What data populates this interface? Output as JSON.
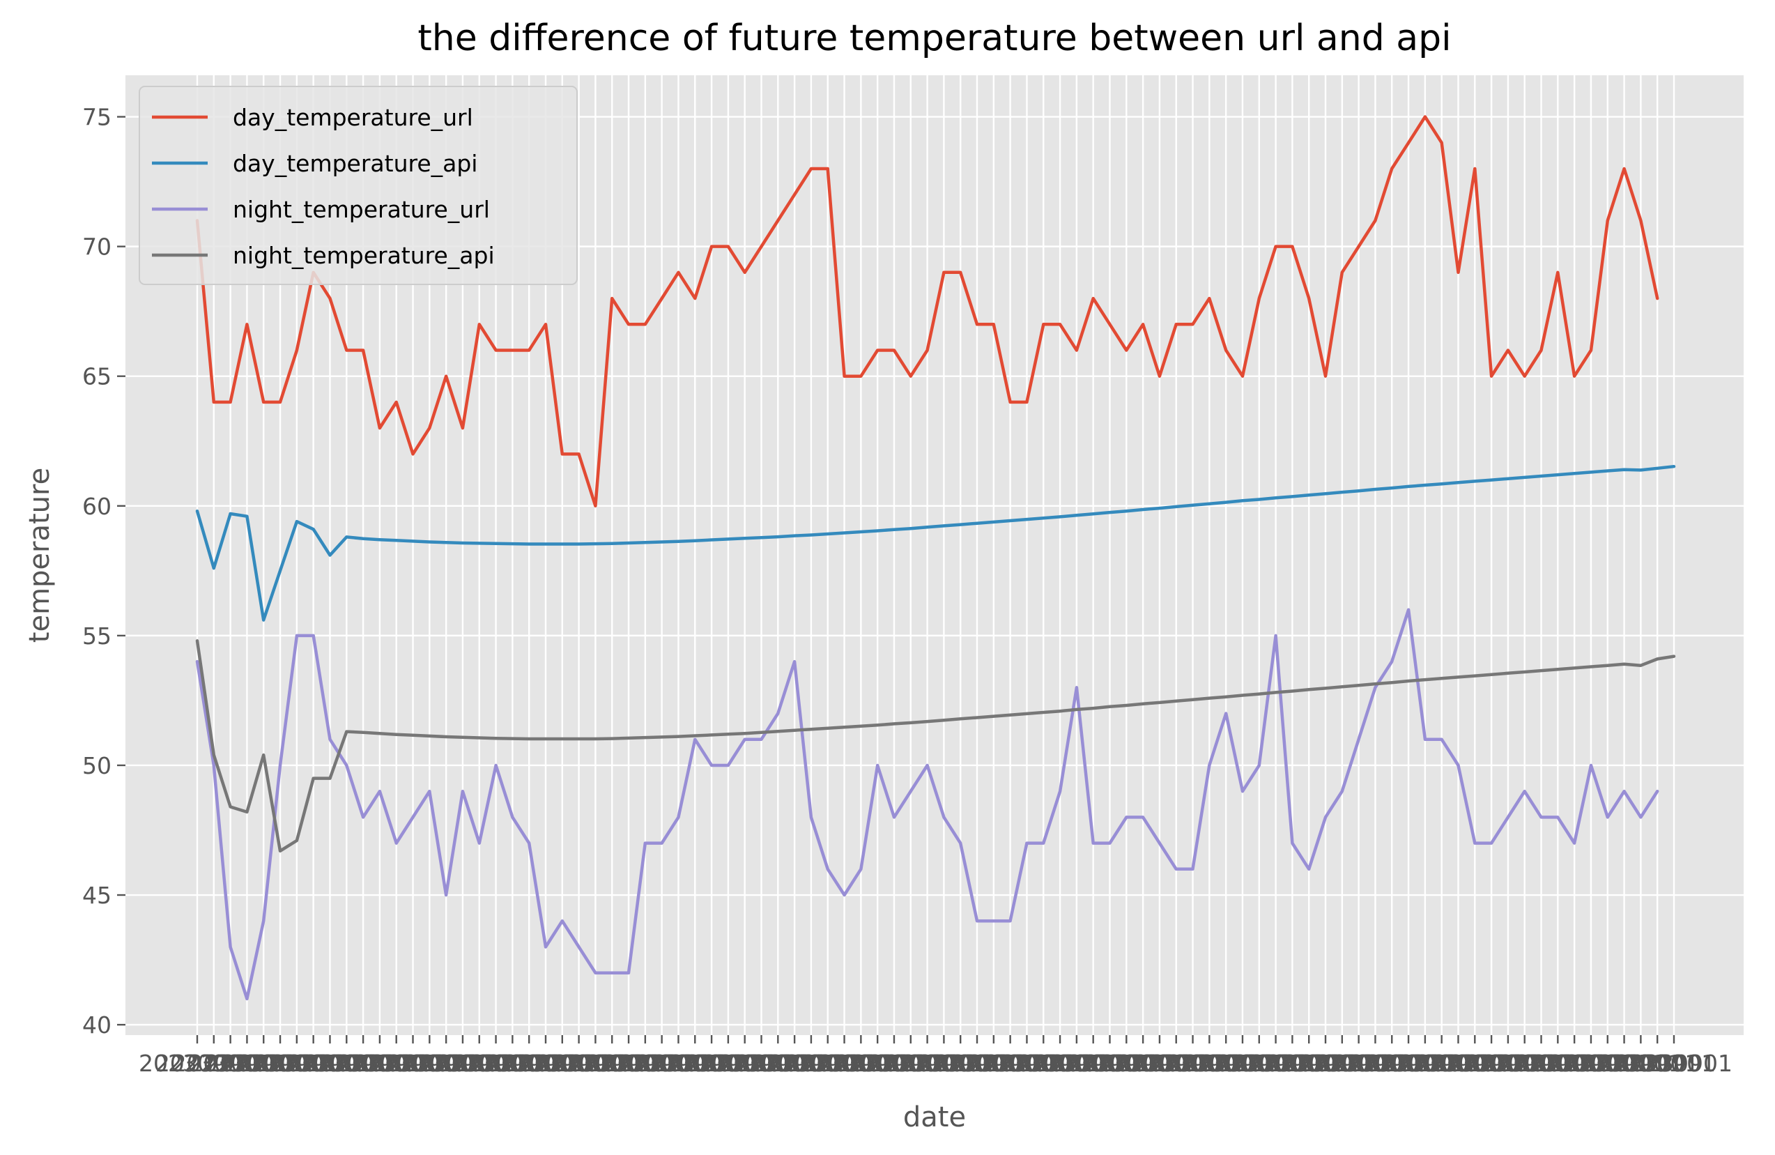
{
  "chart_data": {
    "type": "line",
    "title": "the difference of future temperature between url and api",
    "xlabel": "date",
    "ylabel": "temperature",
    "ylim": [
      39.6,
      76.6
    ],
    "yticks": [
      40,
      45,
      50,
      55,
      60,
      65,
      70,
      75
    ],
    "x_tick_count": 90,
    "x_tick_label_text": "20230901",
    "grid": true,
    "legend_position": "top-left",
    "series": [
      {
        "name": "day_temperature_url",
        "color": "#E24A33",
        "values": [
          71,
          64,
          64,
          67,
          64,
          64,
          66,
          69,
          68,
          66,
          66,
          63,
          64,
          62,
          63,
          65,
          63,
          67,
          66,
          66,
          66,
          67,
          62,
          62,
          60,
          68,
          67,
          67,
          68,
          69,
          68,
          70,
          70,
          69,
          70,
          71,
          72,
          73,
          73,
          65,
          65,
          66,
          66,
          65,
          66,
          69,
          69,
          67,
          67,
          64,
          64,
          67,
          67,
          66,
          68,
          67,
          66,
          67,
          65,
          67,
          67,
          68,
          66,
          65,
          68,
          70,
          70,
          68,
          65,
          69,
          70,
          71,
          73,
          74,
          75,
          74,
          69,
          73,
          65,
          66,
          65,
          66,
          69,
          65,
          66,
          71,
          73,
          71,
          68
        ]
      },
      {
        "name": "day_temperature_api",
        "color": "#348ABD",
        "values": [
          59.8,
          57.6,
          59.7,
          59.6,
          55.6,
          57.5,
          59.4,
          59.1,
          58.1,
          58.8,
          58.74,
          58.7,
          58.67,
          58.64,
          58.61,
          58.59,
          58.57,
          58.56,
          58.55,
          58.54,
          58.53,
          58.53,
          58.53,
          58.53,
          58.54,
          58.55,
          58.57,
          58.59,
          58.61,
          58.63,
          58.66,
          58.69,
          58.72,
          58.75,
          58.78,
          58.81,
          58.85,
          58.88,
          58.92,
          58.96,
          59.0,
          59.04,
          59.09,
          59.13,
          59.18,
          59.23,
          59.28,
          59.33,
          59.38,
          59.43,
          59.48,
          59.53,
          59.58,
          59.64,
          59.69,
          59.75,
          59.8,
          59.86,
          59.91,
          59.97,
          60.03,
          60.08,
          60.14,
          60.2,
          60.25,
          60.31,
          60.36,
          60.42,
          60.47,
          60.53,
          60.58,
          60.64,
          60.69,
          60.75,
          60.8,
          60.85,
          60.9,
          60.95,
          61.0,
          61.05,
          61.1,
          61.15,
          61.2,
          61.25,
          61.3,
          61.35,
          61.4,
          61.38,
          61.45,
          61.52
        ]
      },
      {
        "name": "night_temperature_url",
        "color": "#988ED5",
        "values": [
          54,
          50,
          43,
          41,
          44,
          50,
          55,
          55,
          51,
          50,
          48,
          49,
          47,
          48,
          49,
          45,
          49,
          47,
          50,
          48,
          47,
          43,
          44,
          43,
          42,
          42,
          42,
          47,
          47,
          48,
          51,
          50,
          50,
          51,
          51,
          52,
          54,
          48,
          46,
          45,
          46,
          50,
          48,
          49,
          50,
          48,
          47,
          44,
          44,
          44,
          47,
          47,
          49,
          53,
          47,
          47,
          48,
          48,
          47,
          46,
          46,
          50,
          52,
          49,
          50,
          55,
          47,
          46,
          48,
          49,
          51,
          53,
          54,
          56,
          51,
          51,
          50,
          47,
          47,
          48,
          49,
          48,
          48,
          47,
          50,
          48,
          49,
          48,
          49
        ]
      },
      {
        "name": "night_temperature_api",
        "color": "#777777",
        "values": [
          54.8,
          50.4,
          48.4,
          48.2,
          50.4,
          46.7,
          47.1,
          49.5,
          49.5,
          51.3,
          51.27,
          51.23,
          51.19,
          51.16,
          51.13,
          51.1,
          51.08,
          51.06,
          51.04,
          51.03,
          51.02,
          51.02,
          51.02,
          51.02,
          51.02,
          51.03,
          51.05,
          51.07,
          51.09,
          51.11,
          51.14,
          51.17,
          51.2,
          51.23,
          51.27,
          51.31,
          51.35,
          51.39,
          51.43,
          51.47,
          51.51,
          51.55,
          51.6,
          51.64,
          51.69,
          51.74,
          51.79,
          51.84,
          51.89,
          51.94,
          51.99,
          52.04,
          52.09,
          52.15,
          52.2,
          52.26,
          52.31,
          52.37,
          52.42,
          52.48,
          52.53,
          52.59,
          52.64,
          52.7,
          52.75,
          52.81,
          52.86,
          52.92,
          52.97,
          53.03,
          53.08,
          53.14,
          53.19,
          53.25,
          53.3,
          53.35,
          53.4,
          53.45,
          53.5,
          53.55,
          53.6,
          53.65,
          53.7,
          53.75,
          53.8,
          53.85,
          53.9,
          53.85,
          54.1,
          54.2
        ]
      }
    ]
  }
}
